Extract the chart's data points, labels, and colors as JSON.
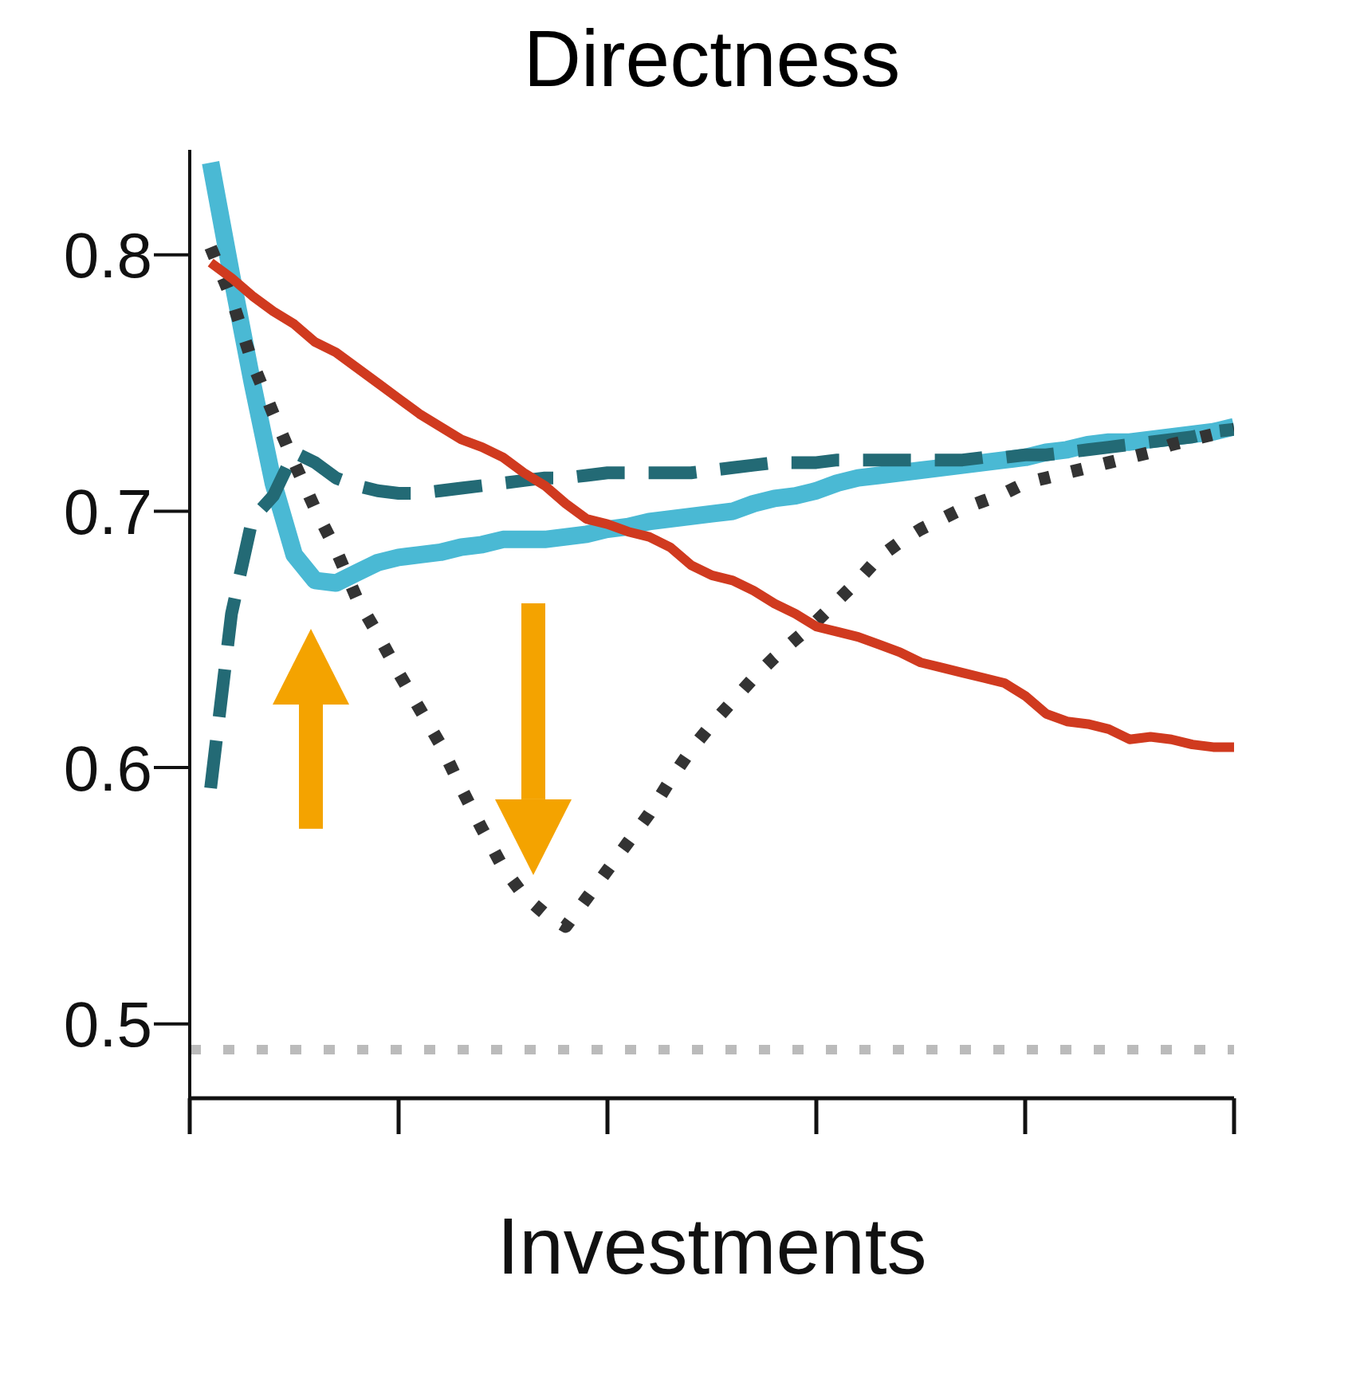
{
  "chart_data": {
    "type": "line",
    "title": "Directness",
    "xlabel": "Investments",
    "categories": [
      null,
      null,
      null,
      null,
      null,
      null,
      null,
      null,
      null,
      null,
      null,
      null,
      null,
      null,
      null,
      null,
      null,
      null,
      null,
      null,
      null,
      null,
      null,
      null,
      null,
      null,
      null,
      null,
      null,
      null,
      null,
      null,
      null,
      null,
      null,
      null,
      null,
      null,
      null,
      null,
      null,
      null,
      null,
      null,
      null,
      null,
      null,
      null,
      null,
      null
    ],
    "ylim": [
      0.471,
      0.841
    ],
    "yticks": [
      0.5,
      0.6,
      0.7,
      0.8
    ],
    "marker": "none",
    "ref_lines": [
      {
        "axis": "y",
        "value": 0.49,
        "color": "#bbbbbb",
        "line_style": "dotted"
      }
    ],
    "series": [
      {
        "color": "#4ab9d4",
        "line_style": "solid",
        "values": [
          0.836,
          0.792,
          0.75,
          0.711,
          0.683,
          0.673,
          0.672,
          0.676,
          0.68,
          0.682,
          0.683,
          0.684,
          0.686,
          0.687,
          0.689,
          0.689,
          0.689,
          0.69,
          0.691,
          0.693,
          0.694,
          0.696,
          0.697,
          0.698,
          0.699,
          0.7,
          0.703,
          0.705,
          0.706,
          0.708,
          0.711,
          0.713,
          0.714,
          0.715,
          0.716,
          0.717,
          0.718,
          0.719,
          0.72,
          0.721,
          0.723,
          0.724,
          0.726,
          0.727,
          0.727,
          0.728,
          0.729,
          0.73,
          0.731,
          0.733
        ]
      },
      {
        "color": "#236a75",
        "line_style": "dashed",
        "values": [
          0.592,
          0.66,
          0.697,
          0.706,
          0.723,
          0.719,
          0.713,
          0.71,
          0.708,
          0.707,
          0.707,
          0.708,
          0.709,
          0.71,
          0.711,
          0.712,
          0.713,
          0.713,
          0.714,
          0.715,
          0.715,
          0.715,
          0.715,
          0.715,
          0.716,
          0.717,
          0.718,
          0.719,
          0.719,
          0.719,
          0.72,
          0.72,
          0.72,
          0.72,
          0.72,
          0.72,
          0.72,
          0.721,
          0.721,
          0.722,
          0.722,
          0.723,
          0.724,
          0.725,
          0.726,
          0.727,
          0.728,
          0.729,
          0.731,
          0.732
        ]
      },
      {
        "color": "#333333",
        "line_style": "dotted",
        "values": [
          0.803,
          0.783,
          0.758,
          0.738,
          0.719,
          0.701,
          0.685,
          0.666,
          0.652,
          0.637,
          0.623,
          0.609,
          0.592,
          0.576,
          0.561,
          0.55,
          0.543,
          0.538,
          0.549,
          0.56,
          0.571,
          0.582,
          0.595,
          0.607,
          0.617,
          0.626,
          0.635,
          0.643,
          0.65,
          0.657,
          0.665,
          0.673,
          0.682,
          0.688,
          0.693,
          0.697,
          0.701,
          0.704,
          0.707,
          0.711,
          0.713,
          0.715,
          0.717,
          0.719,
          0.721,
          0.723,
          0.726,
          0.728,
          0.73,
          0.732
        ]
      },
      {
        "color": "#d03a1f",
        "line_style": "solid",
        "values": [
          0.797,
          0.791,
          0.784,
          0.778,
          0.773,
          0.766,
          0.762,
          0.756,
          0.75,
          0.744,
          0.738,
          0.733,
          0.728,
          0.725,
          0.721,
          0.715,
          0.71,
          0.703,
          0.697,
          0.695,
          0.692,
          0.69,
          0.686,
          0.679,
          0.675,
          0.673,
          0.669,
          0.664,
          0.66,
          0.655,
          0.653,
          0.651,
          0.648,
          0.645,
          0.641,
          0.639,
          0.637,
          0.635,
          0.633,
          0.628,
          0.621,
          0.618,
          0.617,
          0.615,
          0.611,
          0.612,
          0.611,
          0.609,
          0.608,
          0.608
        ]
      }
    ]
  }
}
